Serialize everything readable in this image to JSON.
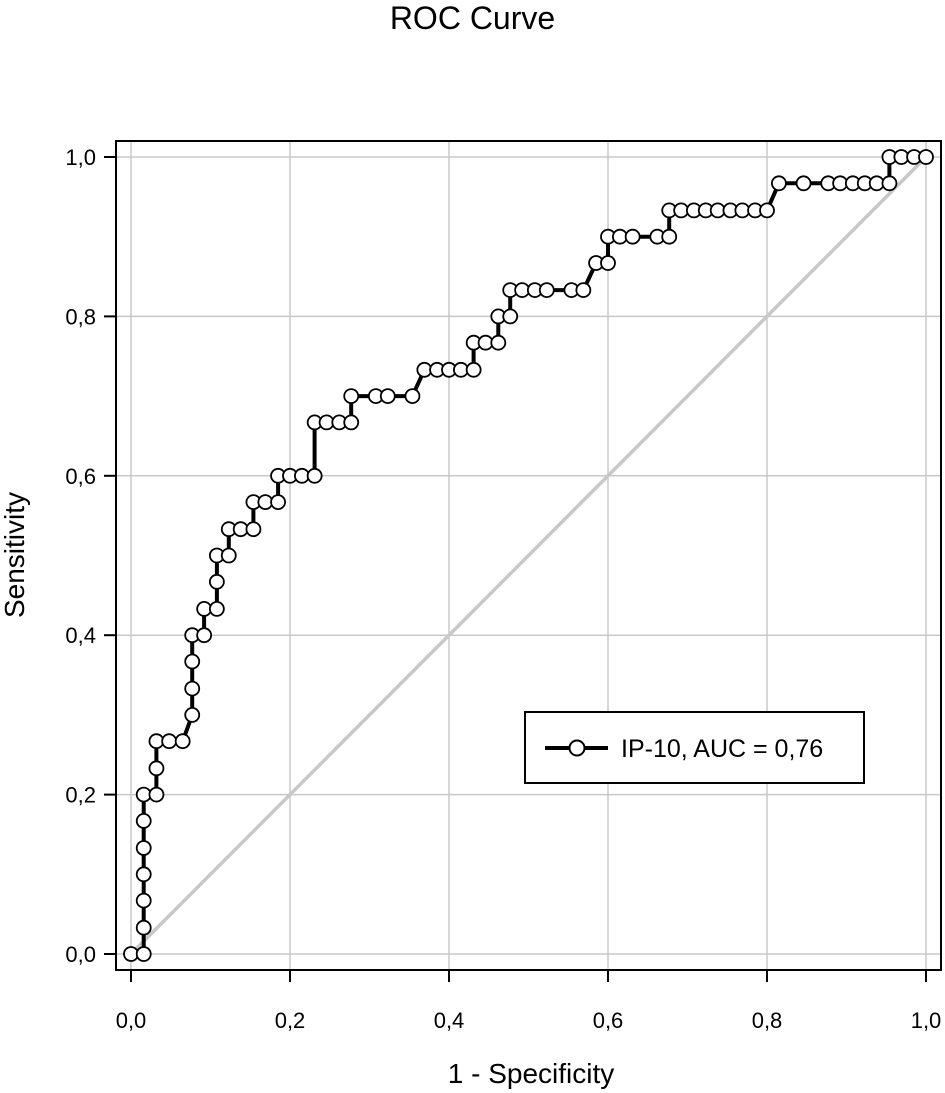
{
  "chart_data": {
    "type": "line",
    "title": "ROC Curve",
    "xlabel": "1 - Specificity",
    "ylabel": "Sensitivity",
    "xlim": [
      0,
      1
    ],
    "ylim": [
      0,
      1
    ],
    "xticks": [
      "0,0",
      "0,2",
      "0,4",
      "0,6",
      "0,8",
      "1,0"
    ],
    "yticks": [
      "0,0",
      "0,2",
      "0,4",
      "0,6",
      "0,8",
      "1,0"
    ],
    "grid": true,
    "legend_position": "bottom-right",
    "reference_line": {
      "x": [
        0,
        1
      ],
      "y": [
        0,
        1
      ],
      "color": "#c8c8c8"
    },
    "series": [
      {
        "name": "IP-10, AUC = 0,76",
        "color": "#000000",
        "marker": "open-circle",
        "x": [
          0.0,
          0.016,
          0.016,
          0.016,
          0.016,
          0.016,
          0.016,
          0.016,
          0.032,
          0.032,
          0.032,
          0.048,
          0.065,
          0.077,
          0.077,
          0.077,
          0.077,
          0.092,
          0.092,
          0.108,
          0.108,
          0.108,
          0.123,
          0.123,
          0.138,
          0.154,
          0.154,
          0.169,
          0.185,
          0.185,
          0.2,
          0.215,
          0.231,
          0.231,
          0.246,
          0.262,
          0.277,
          0.277,
          0.308,
          0.323,
          0.354,
          0.369,
          0.385,
          0.4,
          0.415,
          0.431,
          0.431,
          0.446,
          0.462,
          0.462,
          0.477,
          0.477,
          0.492,
          0.508,
          0.523,
          0.554,
          0.569,
          0.585,
          0.6,
          0.6,
          0.615,
          0.631,
          0.662,
          0.677,
          0.677,
          0.692,
          0.708,
          0.723,
          0.738,
          0.754,
          0.769,
          0.785,
          0.8,
          0.815,
          0.846,
          0.877,
          0.892,
          0.908,
          0.923,
          0.938,
          0.954,
          0.954,
          0.969,
          0.985,
          1.0
        ],
        "y": [
          0.0,
          0.0,
          0.033,
          0.067,
          0.1,
          0.133,
          0.167,
          0.2,
          0.2,
          0.233,
          0.267,
          0.267,
          0.267,
          0.3,
          0.333,
          0.367,
          0.4,
          0.4,
          0.433,
          0.433,
          0.467,
          0.5,
          0.5,
          0.533,
          0.533,
          0.533,
          0.567,
          0.567,
          0.567,
          0.6,
          0.6,
          0.6,
          0.6,
          0.667,
          0.667,
          0.667,
          0.667,
          0.7,
          0.7,
          0.7,
          0.7,
          0.733,
          0.733,
          0.733,
          0.733,
          0.733,
          0.767,
          0.767,
          0.767,
          0.8,
          0.8,
          0.833,
          0.833,
          0.833,
          0.833,
          0.833,
          0.833,
          0.867,
          0.867,
          0.9,
          0.9,
          0.9,
          0.9,
          0.9,
          0.933,
          0.933,
          0.933,
          0.933,
          0.933,
          0.933,
          0.933,
          0.933,
          0.933,
          0.967,
          0.967,
          0.967,
          0.967,
          0.967,
          0.967,
          0.967,
          0.967,
          1.0,
          1.0,
          1.0,
          1.0
        ]
      }
    ]
  }
}
